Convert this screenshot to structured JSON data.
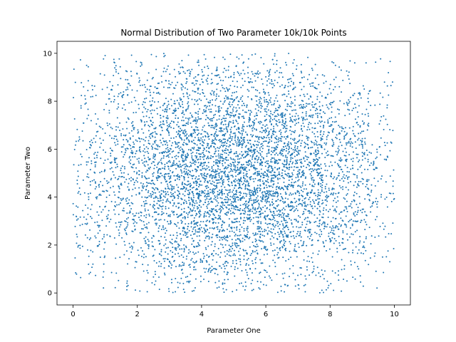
{
  "chart_data": {
    "type": "scatter",
    "title": "Normal Distribution of Two Parameter 10k/10k Points",
    "xlabel": "Parameter One",
    "ylabel": "Parameter Two",
    "xlim": [
      -0.5,
      10.5
    ],
    "ylim": [
      -0.5,
      10.5
    ],
    "xticks": [
      0,
      2,
      4,
      6,
      8,
      10
    ],
    "yticks": [
      0,
      2,
      4,
      6,
      8,
      10
    ],
    "xtick_labels": [
      "0",
      "2",
      "4",
      "6",
      "8",
      "10"
    ],
    "ytick_labels": [
      "0",
      "2",
      "4",
      "6",
      "8",
      "10"
    ],
    "grid": false,
    "legend": "none",
    "point_color": "#1f77b4",
    "distribution": {
      "x_mean": 5,
      "y_mean": 5,
      "x_std": 2.5,
      "y_std": 2.5,
      "x_range": [
        0,
        10
      ],
      "y_range": [
        0,
        10
      ],
      "n_points": 10000
    }
  }
}
